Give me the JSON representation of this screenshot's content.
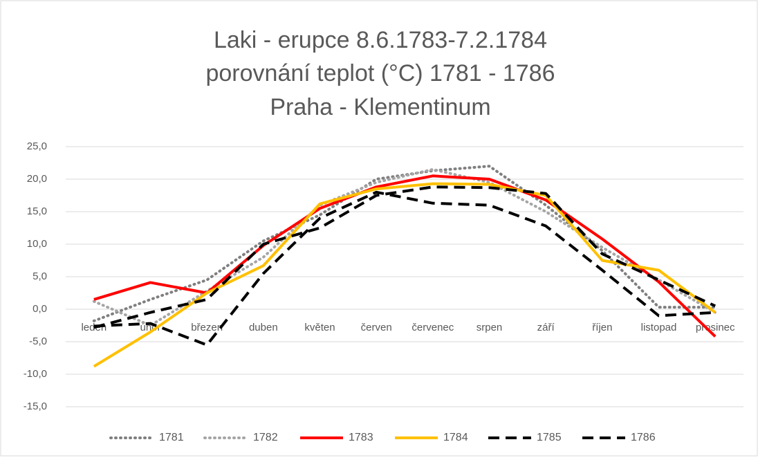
{
  "chart_data": {
    "type": "line",
    "title": [
      "Laki - erupce 8.6.1783-7.2.1784",
      "porovnání teplot (°C) 1781 - 1786",
      "Praha - Klementinum"
    ],
    "categories": [
      "leden",
      "únor",
      "březen",
      "duben",
      "květen",
      "červen",
      "červenec",
      "srpen",
      "září",
      "říjen",
      "listopad",
      "prosinec"
    ],
    "series": [
      {
        "name": "1781",
        "color": "#7f7f7f",
        "style": "dotted",
        "values": [
          -1.8,
          1.5,
          4.5,
          10.5,
          14.5,
          20.0,
          21.3,
          22.0,
          16.0,
          9.0,
          0.3,
          0.3
        ]
      },
      {
        "name": "1782",
        "color": "#a5a5a5",
        "style": "dotted",
        "values": [
          1.2,
          -2.5,
          2.8,
          8.0,
          16.0,
          19.5,
          21.5,
          19.5,
          15.0,
          9.5,
          4.5,
          -0.5
        ]
      },
      {
        "name": "1783",
        "color": "#ff0000",
        "style": "solid",
        "values": [
          1.5,
          4.1,
          2.5,
          9.8,
          15.5,
          18.8,
          20.5,
          20.0,
          16.8,
          10.8,
          4.2,
          -4.2
        ]
      },
      {
        "name": "1784",
        "color": "#ffc000",
        "style": "solid",
        "values": [
          -8.8,
          -3.5,
          2.5,
          6.7,
          16.2,
          18.5,
          19.3,
          19.2,
          17.5,
          7.5,
          6.0,
          -0.5
        ]
      },
      {
        "name": "1785",
        "color": "#000000",
        "style": "dashed",
        "values": [
          -2.6,
          -2.2,
          -5.5,
          5.5,
          14.0,
          18.0,
          16.3,
          16.0,
          12.8,
          6.0,
          -1.0,
          -0.5
        ]
      },
      {
        "name": "1786",
        "color": "#000000",
        "style": "dashed",
        "values": [
          -2.8,
          -0.5,
          1.5,
          10.0,
          12.5,
          17.5,
          18.8,
          18.7,
          17.8,
          8.5,
          4.5,
          0.5
        ]
      }
    ],
    "ylim": [
      -15,
      25
    ],
    "yticks": [
      {
        "value": -15,
        "label": "-15,0"
      },
      {
        "value": -10,
        "label": "-10,0"
      },
      {
        "value": -5,
        "label": "-5,0"
      },
      {
        "value": 0,
        "label": "0,0"
      },
      {
        "value": 5,
        "label": "5,0"
      },
      {
        "value": 10,
        "label": "10,0"
      },
      {
        "value": 15,
        "label": "15,0"
      },
      {
        "value": 20,
        "label": "20,0"
      },
      {
        "value": 25,
        "label": "25,0"
      }
    ],
    "grid": true,
    "legend": "bottom"
  }
}
